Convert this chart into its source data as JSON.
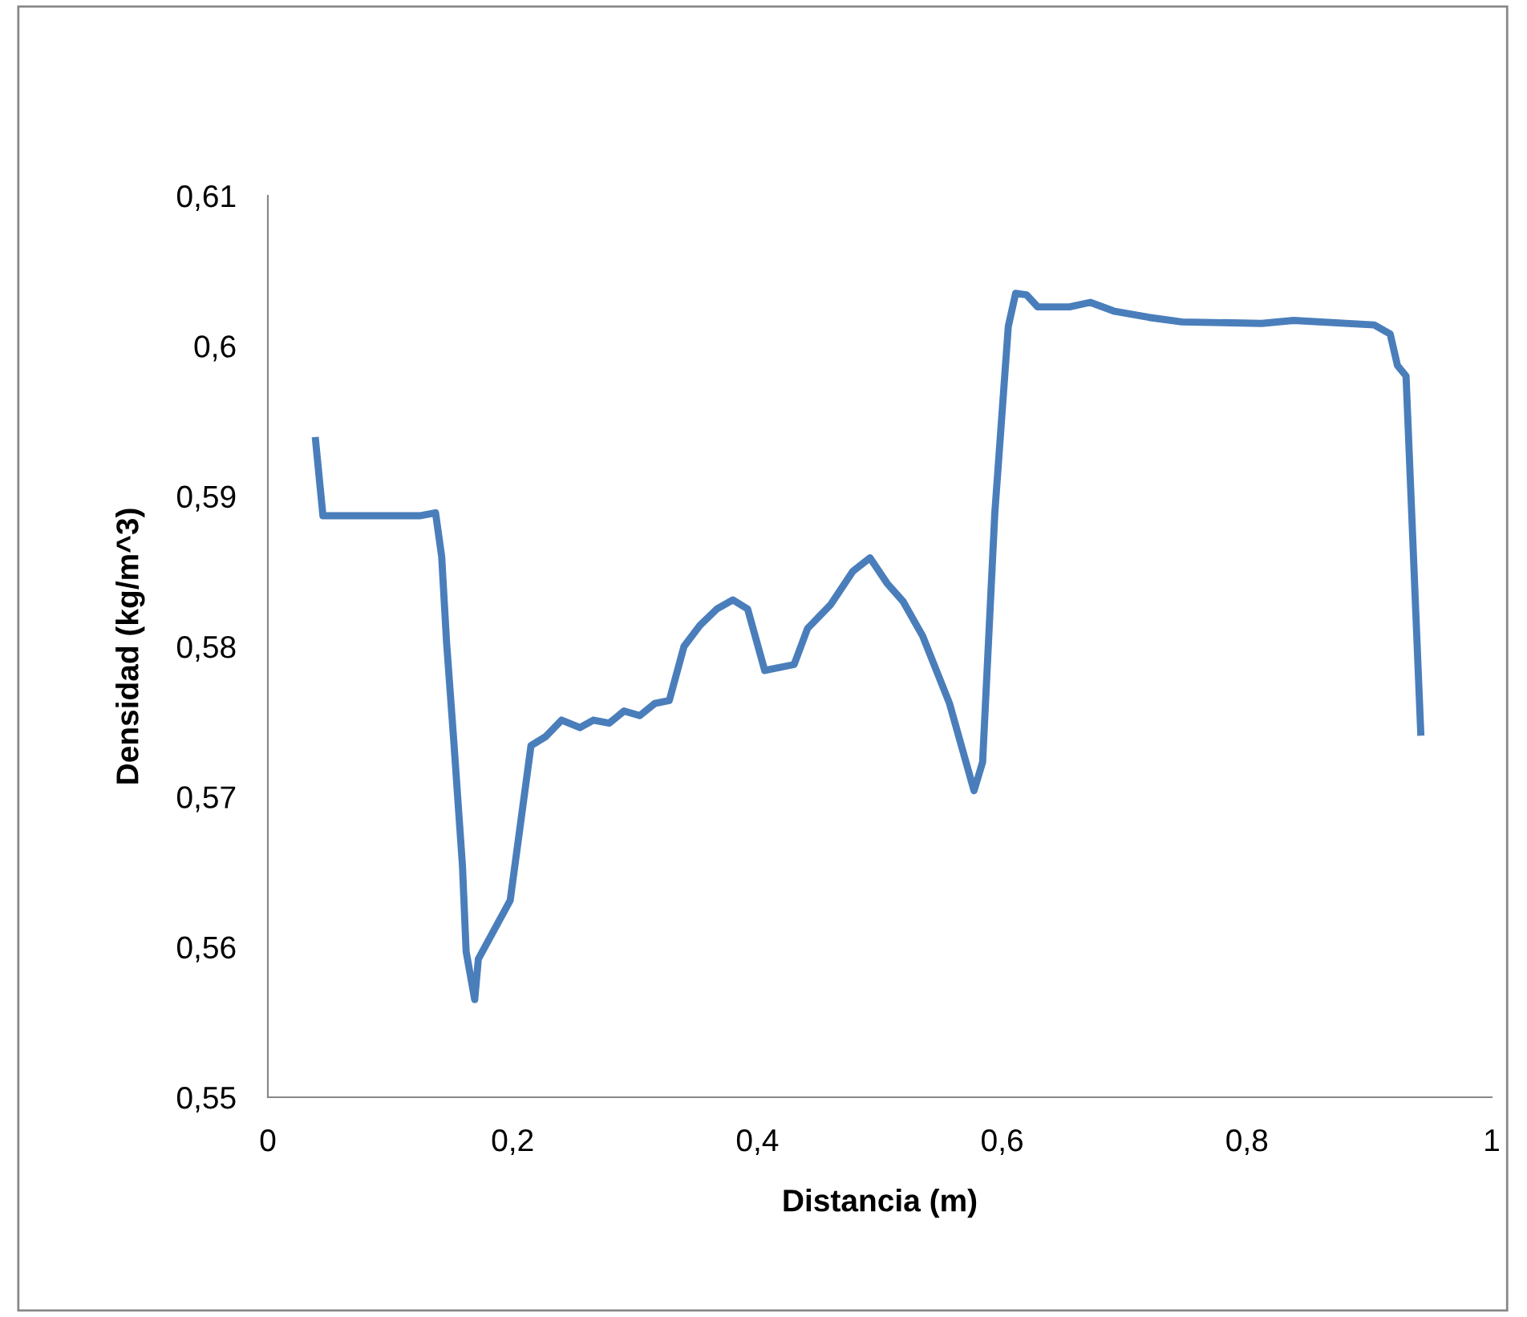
{
  "chart_data": {
    "type": "line",
    "xlabel": "Distancia (m)",
    "ylabel": "Densidad (kg/m^3)",
    "series": [
      {
        "color": "#4a7ebb",
        "x": [
          0.039,
          0.045,
          0.124,
          0.137,
          0.142,
          0.146,
          0.152,
          0.159,
          0.162,
          0.169,
          0.172,
          0.198,
          0.215,
          0.227,
          0.24,
          0.255,
          0.266,
          0.279,
          0.291,
          0.304,
          0.316,
          0.328,
          0.34,
          0.353,
          0.367,
          0.38,
          0.392,
          0.406,
          0.43,
          0.441,
          0.46,
          0.478,
          0.492,
          0.506,
          0.519,
          0.535,
          0.557,
          0.577,
          0.584,
          0.594,
          0.605,
          0.611,
          0.62,
          0.629,
          0.655,
          0.672,
          0.692,
          0.72,
          0.747,
          0.812,
          0.838,
          0.904,
          0.917,
          0.923,
          0.93,
          0.942
        ],
        "values": [
          0.5937,
          0.5887,
          0.5887,
          0.5889,
          0.586,
          0.5803,
          0.5736,
          0.5654,
          0.5597,
          0.5565,
          0.5592,
          0.5631,
          0.5734,
          0.574,
          0.5751,
          0.5746,
          0.5751,
          0.5749,
          0.5757,
          0.5754,
          0.5762,
          0.5764,
          0.58,
          0.5814,
          0.5825,
          0.5831,
          0.5825,
          0.5784,
          0.5788,
          0.5812,
          0.5828,
          0.585,
          0.5859,
          0.5842,
          0.583,
          0.5807,
          0.5762,
          0.5704,
          0.5723,
          0.5889,
          0.6013,
          0.6035,
          0.6034,
          0.6026,
          0.6026,
          0.6029,
          0.6023,
          0.6019,
          0.6016,
          0.6015,
          0.6017,
          0.6014,
          0.6008,
          0.5987,
          0.598,
          0.5743
        ]
      }
    ],
    "xlim": [
      0,
      1
    ],
    "ylim": [
      0.55,
      0.61
    ],
    "xticks": [
      0,
      {
        "value": 0.2,
        "label": "0,2"
      },
      {
        "value": 0.4,
        "label": "0,4"
      },
      {
        "value": 0.6,
        "label": "0,6"
      },
      {
        "value": 0.8,
        "label": "0,8"
      },
      1
    ],
    "yticks": [
      {
        "value": 0.55,
        "label": "0,55"
      },
      {
        "value": 0.56,
        "label": "0,56"
      },
      {
        "value": 0.57,
        "label": "0,57"
      },
      {
        "value": 0.58,
        "label": "0,58"
      },
      {
        "value": 0.59,
        "label": "0,59"
      },
      {
        "value": 0.6,
        "label": "0,6"
      },
      {
        "value": 0.61,
        "label": "0,61"
      }
    ],
    "grid": false,
    "marker": "none",
    "line_style": "solid"
  }
}
